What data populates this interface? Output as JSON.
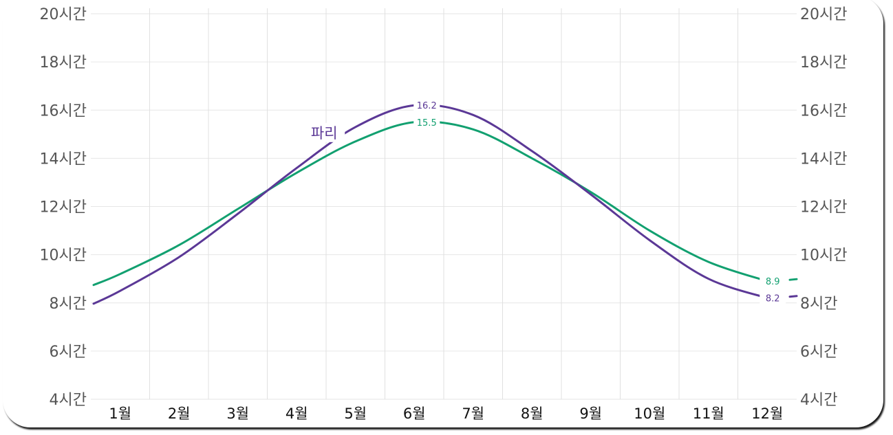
{
  "chart_data": {
    "type": "line",
    "title": "",
    "xlabel": "",
    "ylabel": "",
    "categories": [
      "1월",
      "2월",
      "3월",
      "4월",
      "5월",
      "6월",
      "7월",
      "8월",
      "9월",
      "10월",
      "11월",
      "12월"
    ],
    "y_ticks": [
      "4시간",
      "6시간",
      "8시간",
      "10시간",
      "12시간",
      "14시간",
      "16시간",
      "18시간",
      "20시간"
    ],
    "ylim": [
      4,
      20
    ],
    "grid": true,
    "series": [
      {
        "name": "파리",
        "color": "#5b3896",
        "values": [
          8.5,
          9.9,
          11.7,
          13.6,
          15.3,
          16.2,
          15.8,
          14.3,
          12.5,
          10.6,
          9.0,
          8.2
        ],
        "labels": [
          {
            "text": "16.2",
            "month_index": 5
          },
          {
            "text": "8.2",
            "month_index": 11
          }
        ]
      },
      {
        "name": "",
        "color": "#12a070",
        "values": [
          9.2,
          10.4,
          11.9,
          13.4,
          14.7,
          15.5,
          15.2,
          14.0,
          12.6,
          11.0,
          9.7,
          8.9
        ],
        "labels": [
          {
            "text": "15.5",
            "month_index": 5
          },
          {
            "text": "8.9",
            "month_index": 11
          }
        ]
      }
    ]
  }
}
